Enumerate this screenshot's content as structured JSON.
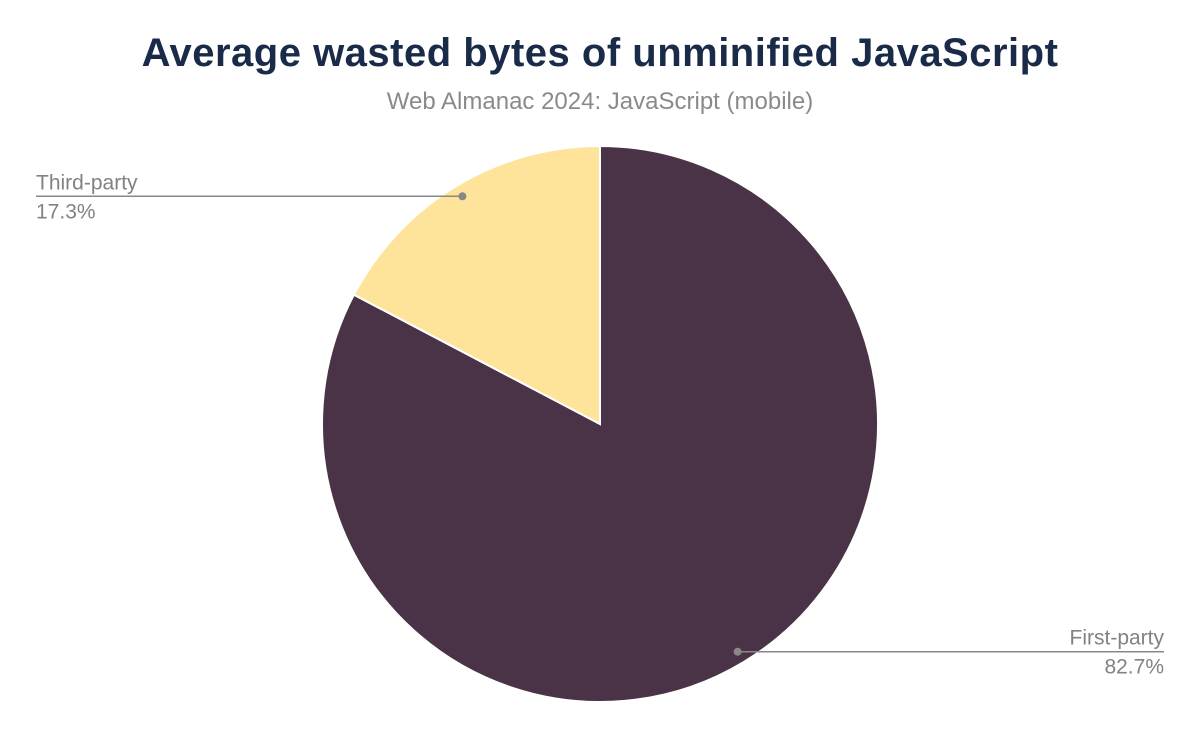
{
  "chart_data": {
    "type": "pie",
    "title": "Average wasted bytes of unminified JavaScript",
    "subtitle": "Web Almanac 2024: JavaScript (mobile)",
    "unit": "%",
    "legend_position": "none",
    "start_angle_deg": 0,
    "direction": "clockwise",
    "slices": [
      {
        "label": "First-party",
        "value": 82.7,
        "display": "82.7%",
        "color": "#4A3347",
        "label_side": "right"
      },
      {
        "label": "Third-party",
        "value": 17.3,
        "display": "17.3%",
        "color": "#FEE39A",
        "label_side": "left"
      }
    ],
    "styles": {
      "title_color": "#1A2B49",
      "subtitle_color": "#8A8A8A",
      "label_color": "#828282",
      "leader_line_color": "#888888",
      "slice_border_color": "#FFFFFF",
      "background": "#FFFFFF"
    }
  }
}
